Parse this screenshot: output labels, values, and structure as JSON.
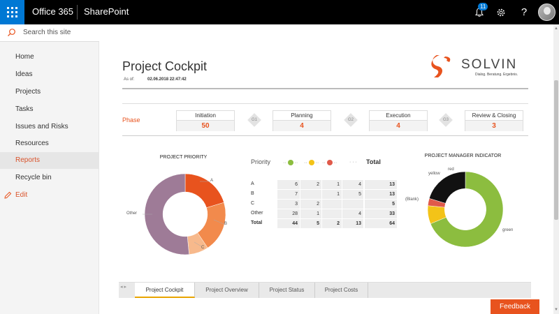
{
  "suitebar": {
    "brand": "Office 365",
    "app": "SharePoint",
    "notification_count": "11",
    "help": "?"
  },
  "leftnav": {
    "search_placeholder": "Search this site",
    "items": [
      {
        "label": "Home"
      },
      {
        "label": "Ideas"
      },
      {
        "label": "Projects"
      },
      {
        "label": "Tasks"
      },
      {
        "label": "Issues and Risks"
      },
      {
        "label": "Resources"
      },
      {
        "label": "Reports",
        "active": true
      },
      {
        "label": "Recycle bin"
      }
    ],
    "edit_label": "Edit"
  },
  "report": {
    "title": "Project Cockpit",
    "asof_label": "As of:",
    "asof_value": "02.06.2018 22:47:42",
    "logo_text": "SOLVIN",
    "logo_sub": "Dialog. Beratung. Ergebnis."
  },
  "phases": {
    "label": "Phase",
    "items": [
      {
        "name": "Initiation",
        "value": "50"
      },
      {
        "name": "Planning",
        "value": "4"
      },
      {
        "name": "Execution",
        "value": "4"
      },
      {
        "name": "Review & Closing",
        "value": "3"
      }
    ],
    "gates": [
      "G1",
      "G2",
      "G3"
    ]
  },
  "priority_table": {
    "header_priority": "Priority",
    "header_total": "Total",
    "dots": [
      "green",
      "yellow",
      "red",
      "none"
    ],
    "rows": [
      {
        "label": "A",
        "cells": [
          "6",
          "2",
          "1",
          "4"
        ],
        "total": "13"
      },
      {
        "label": "B",
        "cells": [
          "7",
          "",
          "1",
          "5"
        ],
        "total": "13"
      },
      {
        "label": "C",
        "cells": [
          "3",
          "2",
          "",
          ""
        ],
        "total": "5"
      },
      {
        "label": "Other",
        "cells": [
          "28",
          "1",
          "",
          "4"
        ],
        "total": "33"
      },
      {
        "label": "Total",
        "cells": [
          "44",
          "5",
          "2",
          "13"
        ],
        "total": "64"
      }
    ]
  },
  "chart_data": [
    {
      "type": "pie",
      "title": "PROJECT PRIORITY",
      "categories": [
        "A",
        "B",
        "C",
        "Other"
      ],
      "values": [
        13,
        13,
        5,
        33
      ],
      "colors": [
        "#e8531e",
        "#f28a4c",
        "#f7b98c",
        "#9e7b97"
      ]
    },
    {
      "type": "pie",
      "title": "PROJECT MANAGER INDICATOR",
      "categories": [
        "green",
        "yellow",
        "red",
        "(Blank)"
      ],
      "values": [
        44,
        5,
        2,
        13
      ],
      "colors": [
        "#8cbd3f",
        "#f3c318",
        "#e05a4a",
        "#111111"
      ]
    }
  ],
  "tabs": [
    {
      "label": "Project Cockpit",
      "active": true
    },
    {
      "label": "Project Overview"
    },
    {
      "label": "Project Status"
    },
    {
      "label": "Project Costs"
    }
  ],
  "feedback_label": "Feedback",
  "colors": {
    "accent": "#e8531e",
    "brand_blue": "#0078d4"
  }
}
